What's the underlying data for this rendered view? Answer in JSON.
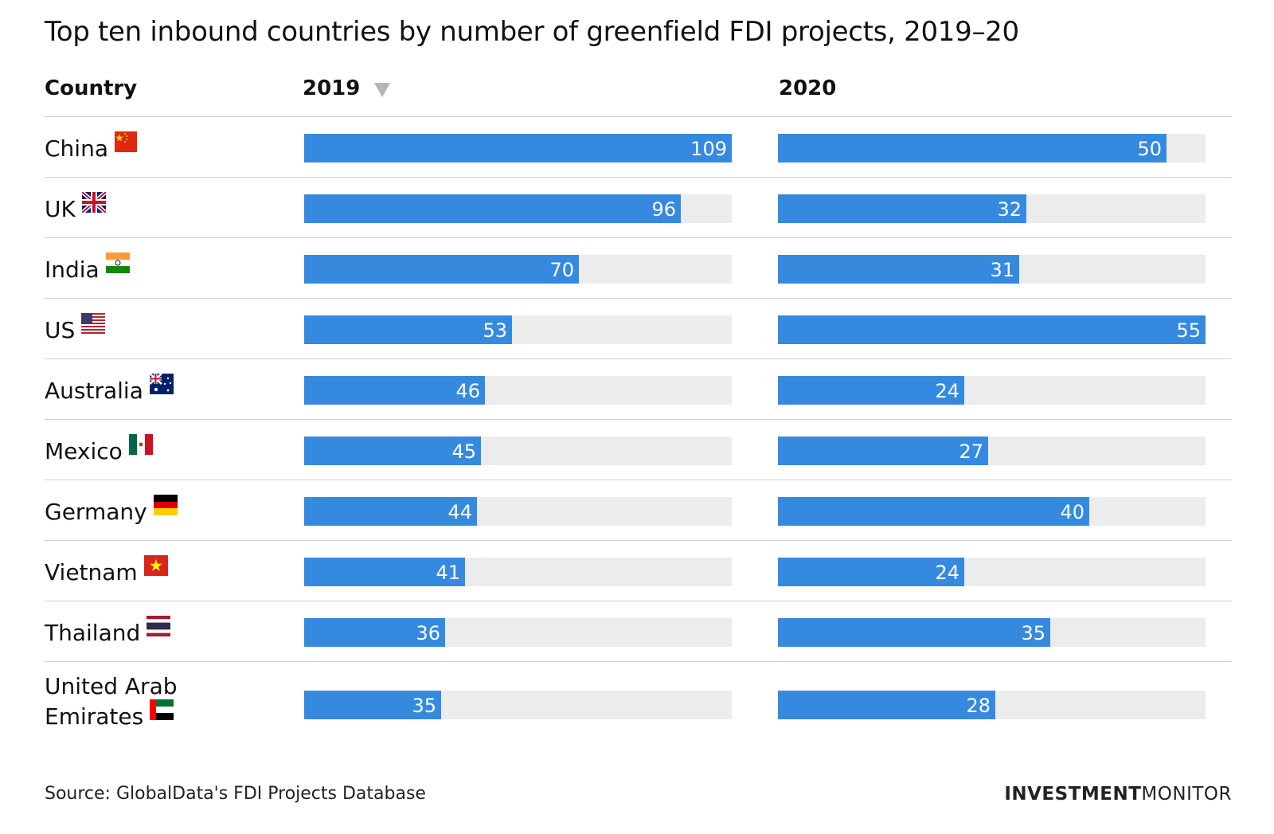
{
  "title": "Top ten inbound countries by number of greenfield FDI projects, 2019–20",
  "columns": {
    "country": "Country",
    "y2019": "2019",
    "y2020": "2020"
  },
  "sort_icon": "sort-descending-triangle-icon",
  "colors": {
    "bar": "#358ae0",
    "track": "#ececec",
    "separator": "#cfcfcf"
  },
  "chart_data": {
    "type": "bar",
    "orientation": "horizontal",
    "categories": [
      "China",
      "UK",
      "India",
      "US",
      "Australia",
      "Mexico",
      "Germany",
      "Vietnam",
      "Thailand",
      "United Arab Emirates"
    ],
    "series": [
      {
        "name": "2019",
        "values": [
          109,
          96,
          70,
          53,
          46,
          45,
          44,
          41,
          36,
          35
        ],
        "max": 109
      },
      {
        "name": "2020",
        "values": [
          50,
          32,
          31,
          55,
          24,
          27,
          40,
          24,
          35,
          28
        ],
        "max": 55
      }
    ],
    "title": "Top ten inbound countries by number of greenfield FDI projects, 2019–20",
    "data_labels": true,
    "sorted_by": "2019 descending"
  },
  "rows": [
    {
      "country_lines": [
        "China"
      ],
      "flag": "china-flag-icon"
    },
    {
      "country_lines": [
        "UK"
      ],
      "flag": "uk-flag-icon"
    },
    {
      "country_lines": [
        "India"
      ],
      "flag": "india-flag-icon"
    },
    {
      "country_lines": [
        "US"
      ],
      "flag": "us-flag-icon"
    },
    {
      "country_lines": [
        "Australia"
      ],
      "flag": "australia-flag-icon"
    },
    {
      "country_lines": [
        "Mexico"
      ],
      "flag": "mexico-flag-icon"
    },
    {
      "country_lines": [
        "Germany"
      ],
      "flag": "germany-flag-icon"
    },
    {
      "country_lines": [
        "Vietnam"
      ],
      "flag": "vietnam-flag-icon"
    },
    {
      "country_lines": [
        "Thailand"
      ],
      "flag": "thailand-flag-icon"
    },
    {
      "country_lines": [
        "United Arab",
        "Emirates"
      ],
      "flag": "uae-flag-icon"
    }
  ],
  "footer": {
    "source": "Source: GlobalData's FDI Projects Database",
    "logo_bold": "INVESTMENT",
    "logo_light": "MONITOR"
  }
}
